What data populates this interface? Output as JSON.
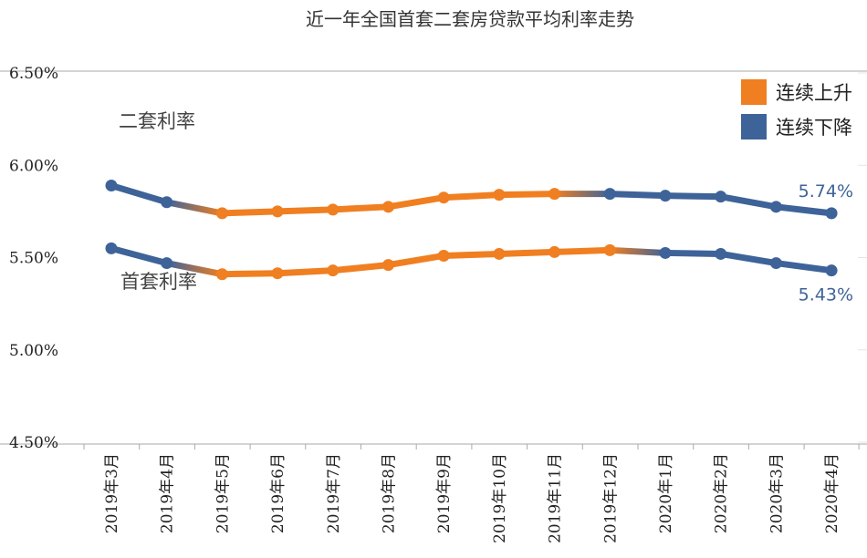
{
  "colors": {
    "up": "#f07f21",
    "down": "#3e6399",
    "axis": "#aaaaaa",
    "grid": "#e6e6e6"
  },
  "chart_data": {
    "type": "line",
    "title": "近一年全国首套二套房贷款平均利率走势",
    "categories": [
      "2019年3月",
      "2019年4月",
      "2019年5月",
      "2019年6月",
      "2019年7月",
      "2019年8月",
      "2019年9月",
      "2019年10月",
      "2019年11月",
      "2019年12月",
      "2020年1月",
      "2020年2月",
      "2020年3月",
      "2020年4月"
    ],
    "y_ticks": [
      "6.50%",
      "6.00%",
      "5.50%",
      "5.00%",
      "4.50%"
    ],
    "ylim": [
      4.5,
      6.5
    ],
    "grid": false,
    "legend": {
      "position": "top-right",
      "items": [
        {
          "label": "连续上升",
          "color": "#f07f21"
        },
        {
          "label": "连续下降",
          "color": "#3e6399"
        }
      ]
    },
    "series": [
      {
        "name": "二套利率",
        "values": [
          5.89,
          5.8,
          5.74,
          5.75,
          5.76,
          5.775,
          5.825,
          5.84,
          5.845,
          5.845,
          5.835,
          5.83,
          5.775,
          5.74
        ],
        "trend": [
          "down",
          "down",
          "up",
          "up",
          "up",
          "up",
          "up",
          "up",
          "up",
          "down",
          "down",
          "down",
          "down",
          "down"
        ],
        "end_label": "5.74%"
      },
      {
        "name": "首套利率",
        "values": [
          5.55,
          5.47,
          5.41,
          5.415,
          5.43,
          5.46,
          5.51,
          5.52,
          5.53,
          5.54,
          5.525,
          5.52,
          5.47,
          5.43
        ],
        "trend": [
          "down",
          "down",
          "up",
          "up",
          "up",
          "up",
          "up",
          "up",
          "up",
          "up",
          "down",
          "down",
          "down",
          "down"
        ],
        "end_label": "5.43%"
      }
    ]
  }
}
